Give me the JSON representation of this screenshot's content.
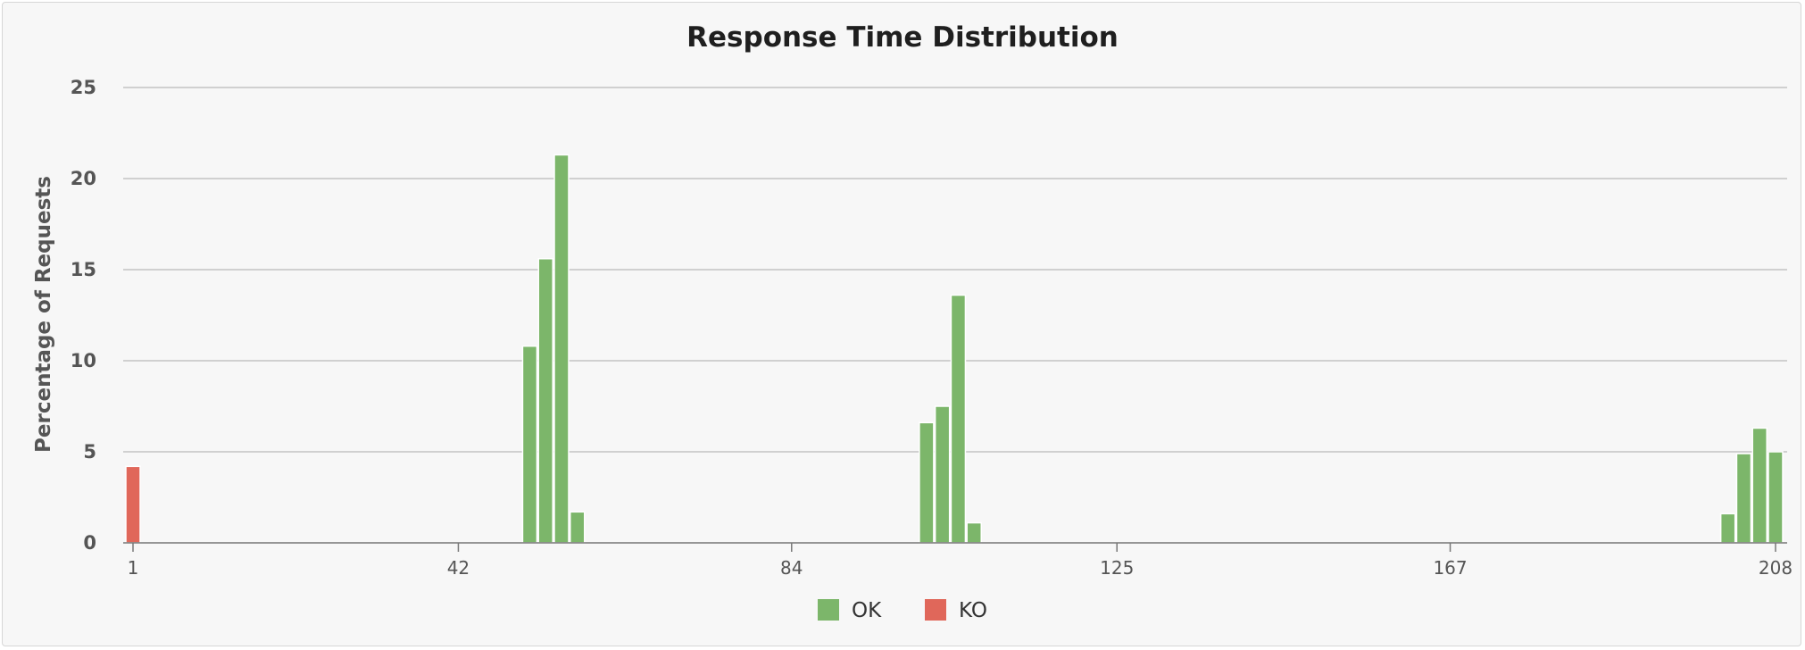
{
  "chart_data": {
    "type": "bar",
    "title": "Response Time Distribution",
    "xlabel": "",
    "ylabel": "Percentage of Requests",
    "xlim": [
      1,
      208
    ],
    "ylim": [
      0,
      25
    ],
    "yticks": [
      0,
      5,
      10,
      15,
      20,
      25
    ],
    "xticks": [
      1,
      42,
      84,
      125,
      167,
      208
    ],
    "grid": true,
    "legend": "bottom-center",
    "series": [
      {
        "name": "OK",
        "color": "#7cb66a",
        "points": [
          {
            "x": 51,
            "y": 10.8
          },
          {
            "x": 53,
            "y": 15.6
          },
          {
            "x": 55,
            "y": 21.3
          },
          {
            "x": 57,
            "y": 1.7
          },
          {
            "x": 101,
            "y": 6.6
          },
          {
            "x": 103,
            "y": 7.5
          },
          {
            "x": 105,
            "y": 13.6
          },
          {
            "x": 107,
            "y": 1.1
          },
          {
            "x": 202,
            "y": 1.6
          },
          {
            "x": 204,
            "y": 4.9
          },
          {
            "x": 206,
            "y": 6.3
          },
          {
            "x": 208,
            "y": 5.0
          }
        ]
      },
      {
        "name": "KO",
        "color": "#e0675a",
        "points": [
          {
            "x": 1,
            "y": 4.2
          }
        ]
      }
    ]
  }
}
